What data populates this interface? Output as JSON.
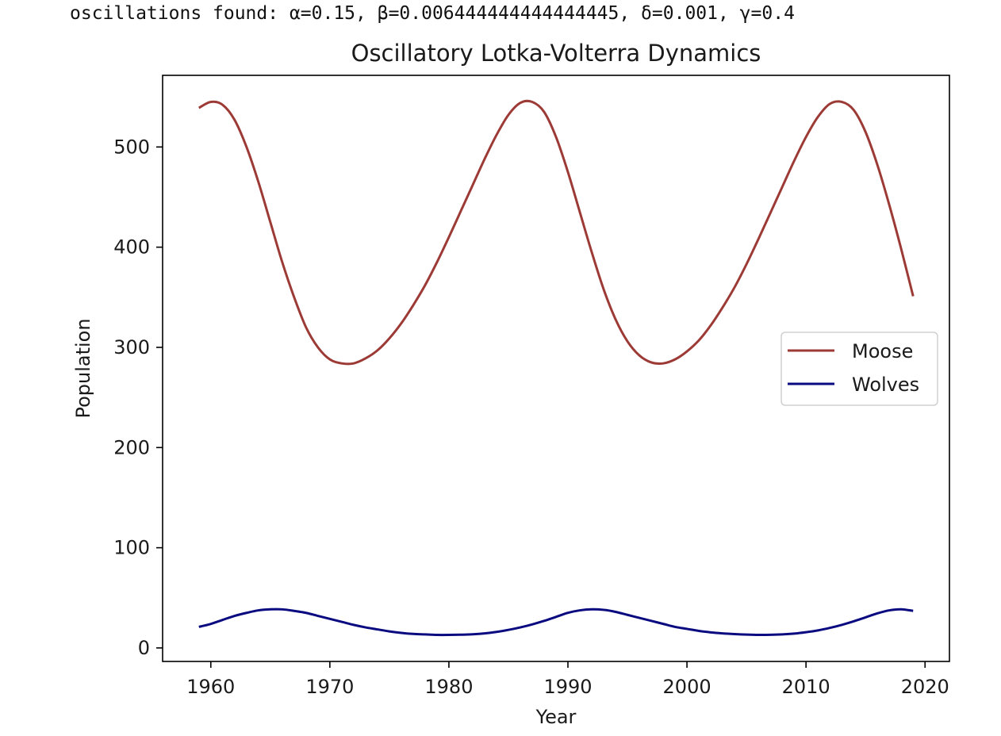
{
  "console": {
    "text": "oscillations found: α=0.15, β=0.006444444444444445, δ=0.001, γ=0.4"
  },
  "chart_data": {
    "type": "line",
    "title": "Oscillatory Lotka-Volterra Dynamics",
    "xlabel": "Year",
    "ylabel": "Population",
    "xlim": [
      1955.95,
      2022.05
    ],
    "ylim": [
      -13.5,
      571.5
    ],
    "xticks": [
      1960,
      1970,
      1980,
      1990,
      2000,
      2010,
      2020
    ],
    "yticks": [
      0,
      100,
      200,
      300,
      400,
      500
    ],
    "grid": false,
    "legend_position": "center-right",
    "x": [
      1959,
      1960,
      1961,
      1962,
      1963,
      1964,
      1965,
      1966,
      1967,
      1968,
      1969,
      1970,
      1971,
      1972,
      1973,
      1974,
      1975,
      1976,
      1977,
      1978,
      1979,
      1980,
      1981,
      1982,
      1983,
      1984,
      1985,
      1986,
      1987,
      1988,
      1989,
      1990,
      1991,
      1992,
      1993,
      1994,
      1995,
      1996,
      1997,
      1998,
      1999,
      2000,
      2001,
      2002,
      2003,
      2004,
      2005,
      2006,
      2007,
      2008,
      2009,
      2010,
      2011,
      2012,
      2013,
      2014,
      2015,
      2016,
      2017,
      2018,
      2019
    ],
    "series": [
      {
        "name": "Moose",
        "color": "#9c3a36",
        "values": [
          539,
          545,
          542,
          527,
          500,
          465,
          425,
          385,
          350,
          320,
          300,
          288,
          284,
          284,
          289,
          297,
          309,
          324,
          342,
          362,
          385,
          410,
          436,
          462,
          488,
          512,
          532,
          544,
          545,
          535,
          510,
          475,
          435,
          395,
          358,
          328,
          306,
          292,
          285,
          284,
          288,
          296,
          307,
          322,
          340,
          360,
          383,
          408,
          434,
          460,
          486,
          510,
          530,
          543,
          545,
          537,
          515,
          482,
          442,
          398,
          351
        ]
      },
      {
        "name": "Wolves",
        "color": "#0a0a80",
        "values": [
          21,
          24,
          28,
          32,
          35,
          37.5,
          38.5,
          38.5,
          37,
          35,
          32,
          29,
          26,
          23,
          20.5,
          18.5,
          16.5,
          15,
          14,
          13.5,
          13,
          13,
          13.2,
          13.6,
          14.5,
          16,
          18,
          20.5,
          23.5,
          27,
          31,
          35,
          37.5,
          38.5,
          38,
          36,
          33,
          30,
          27,
          24,
          21,
          19,
          17,
          15.5,
          14.5,
          13.8,
          13.3,
          13,
          13.1,
          13.5,
          14.3,
          15.7,
          17.5,
          20,
          23,
          26.5,
          30.5,
          34.5,
          37.5,
          38.5,
          37
        ]
      }
    ]
  }
}
